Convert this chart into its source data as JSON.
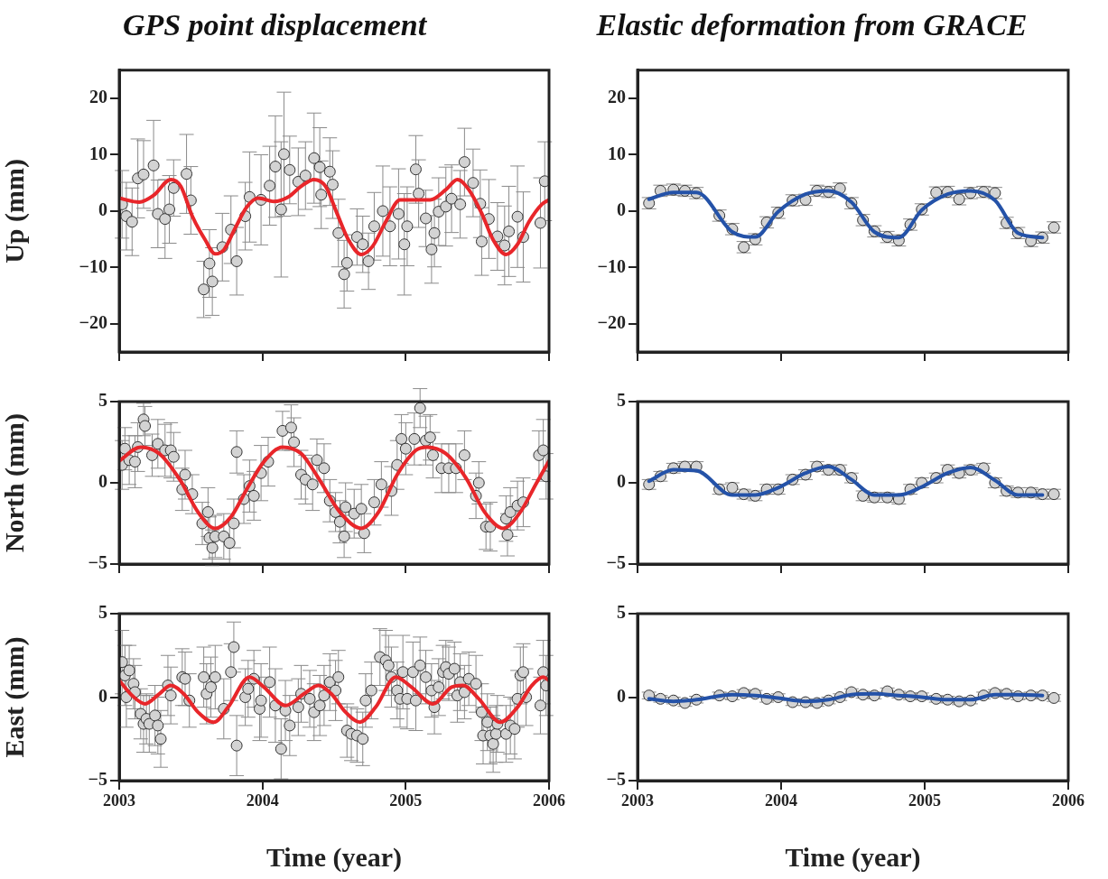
{
  "chart_data": [
    {
      "type": "scatter",
      "title": "GPS point displacement",
      "ylabel": "Up (mm)",
      "xlim": [
        2003,
        2006
      ],
      "xticks": [
        2003,
        2004,
        2005,
        2006
      ],
      "ylim": [
        -25,
        25
      ],
      "yticks": [
        {
          "value": -20,
          "label": "−20"
        },
        {
          "value": -10,
          "label": "−10"
        },
        0,
        10,
        20
      ],
      "tick_labels": "y",
      "grid": false,
      "legend": false,
      "series": [
        {
          "type": "scatter",
          "marker": "circle",
          "color": "#d3d3d3",
          "x": [
            2003.02,
            2003.05,
            2003.09,
            2003.13,
            2003.17,
            2003.24,
            2003.27,
            2003.32,
            2003.35,
            2003.38,
            2003.47,
            2003.5,
            2003.59,
            2003.63,
            2003.65,
            2003.72,
            2003.78,
            2003.82,
            2003.88,
            2003.91,
            2003.99,
            2004.05,
            2004.09,
            2004.13,
            2004.15,
            2004.19,
            2004.25,
            2004.3,
            2004.36,
            2004.4,
            2004.41,
            2004.47,
            2004.49,
            2004.53,
            2004.57,
            2004.59,
            2004.66,
            2004.7,
            2004.74,
            2004.78,
            2004.84,
            2004.89,
            2004.95,
            2004.99,
            2005.01,
            2005.07,
            2005.09,
            2005.14,
            2005.18,
            2005.2,
            2005.23,
            2005.28,
            2005.32,
            2005.38,
            2005.41,
            2005.47,
            2005.52,
            2005.53,
            2005.58,
            2005.64,
            2005.69,
            2005.72,
            2005.78,
            2005.82,
            2005.94,
            2005.97
          ],
          "values": [
            1.2,
            -0.9,
            -1.9,
            5.8,
            6.5,
            8.1,
            -0.5,
            -1.4,
            0.3,
            4.1,
            6.6,
            1.9,
            -13.9,
            -9.3,
            -12.5,
            -6.4,
            -3.3,
            -8.9,
            -0.9,
            2.5,
            2,
            4.5,
            7.9,
            0.3,
            10.1,
            7.3,
            5.2,
            6.3,
            9.4,
            7.8,
            2.9,
            7,
            4.7,
            -3.9,
            -11.2,
            -9.2,
            -4.6,
            -5.9,
            -8.9,
            -2.7,
            0,
            -2.7,
            -0.5,
            -5.9,
            -2.7,
            7.4,
            3.1,
            -1.3,
            -6.8,
            -3.9,
            -0.1,
            0.8,
            2.2,
            1.2,
            8.7,
            5,
            1.3,
            -5.4,
            -1.4,
            -4.5,
            -6.1,
            -3.6,
            -1,
            -4.6,
            -2.1,
            5.3
          ],
          "errors": [
            6,
            6,
            6,
            7,
            6,
            8,
            6,
            7,
            6,
            5,
            7,
            6,
            5,
            6,
            6,
            6,
            6,
            6,
            6,
            8,
            8,
            7,
            9,
            12,
            11,
            6,
            6,
            6,
            8,
            7,
            6,
            6,
            6,
            6,
            6,
            5,
            5,
            5,
            5,
            6,
            8,
            7,
            8,
            9,
            7,
            6,
            6,
            5,
            6,
            6,
            6,
            7,
            6,
            6,
            6,
            6,
            6,
            6,
            7,
            6,
            7,
            8,
            9,
            8,
            8,
            7
          ]
        },
        {
          "type": "line",
          "color": "#e8262a",
          "x": [
            2003,
            2003.14,
            2003.24,
            2003.36,
            2003.43,
            2003.51,
            2003.6,
            2003.67,
            2003.73,
            2003.81,
            2003.89,
            2003.97,
            2004.08,
            2004.18,
            2004.27,
            2004.36,
            2004.44,
            2004.52,
            2004.6,
            2004.69,
            2004.77,
            2004.86,
            2004.96,
            2005.07,
            2005.17,
            2005.28,
            2005.36,
            2005.44,
            2005.53,
            2005.61,
            2005.7,
            2005.78,
            2005.86,
            2005.95,
            2006
          ],
          "values": [
            2.3,
            1.6,
            2.8,
            5.6,
            4.4,
            -0.9,
            -5.1,
            -7.6,
            -6.9,
            -3,
            0.7,
            2.3,
            1.7,
            2.5,
            4.4,
            5.6,
            4.4,
            -0.4,
            -5.1,
            -7.7,
            -6.2,
            -1.9,
            2,
            2,
            2,
            3.8,
            5.6,
            3.8,
            -0.4,
            -5.1,
            -7.7,
            -5.9,
            -1.9,
            1.2,
            2
          ]
        }
      ]
    },
    {
      "type": "scatter",
      "title": "Elastic deformation from GRACE",
      "xlim": [
        2003,
        2006
      ],
      "xticks": [
        2003,
        2004,
        2005,
        2006
      ],
      "ylim": [
        -25,
        25
      ],
      "yticks": [
        {
          "value": -20,
          "label": "−20"
        },
        {
          "value": -10,
          "label": "−10"
        },
        0,
        10,
        20
      ],
      "tick_labels": "y",
      "grid": false,
      "legend": false,
      "series": [
        {
          "type": "scatter",
          "marker": "circle",
          "color": "#d3d3d3",
          "x": [
            2003.08,
            2003.16,
            2003.25,
            2003.33,
            2003.41,
            2003.57,
            2003.66,
            2003.74,
            2003.82,
            2003.9,
            2003.98,
            2004.08,
            2004.17,
            2004.25,
            2004.33,
            2004.41,
            2004.49,
            2004.57,
            2004.65,
            2004.74,
            2004.82,
            2004.9,
            2004.98,
            2005.08,
            2005.16,
            2005.24,
            2005.32,
            2005.41,
            2005.49,
            2005.57,
            2005.65,
            2005.74,
            2005.82,
            2005.9
          ],
          "values": [
            1.4,
            3.6,
            3.8,
            3.6,
            3.2,
            -0.8,
            -3.2,
            -6.4,
            -5,
            -2,
            -0.3,
            1.9,
            2,
            3.6,
            3.4,
            4,
            1.4,
            -1.6,
            -3.6,
            -4.6,
            -5.2,
            -2.4,
            0.3,
            3.3,
            3.4,
            2.1,
            3.2,
            3.4,
            3.2,
            -2.1,
            -3.9,
            -5.3,
            -4.7,
            -2.9
          ],
          "errors": [
            1,
            1,
            1,
            1,
            1,
            1,
            1,
            1,
            1,
            1,
            1,
            1,
            1,
            1,
            1,
            1,
            1,
            1,
            1,
            1,
            1,
            1,
            1,
            1,
            1,
            1,
            1,
            1,
            1,
            1,
            1,
            1,
            1,
            1
          ]
        },
        {
          "type": "line",
          "color": "#2452a8",
          "x": [
            2003.08,
            2003.25,
            2003.41,
            2003.66,
            2003.82,
            2003.98,
            2004.17,
            2004.33,
            2004.49,
            2004.65,
            2004.82,
            2004.98,
            2005.16,
            2005.32,
            2005.49,
            2005.65,
            2005.82
          ],
          "values": [
            2.1,
            3.3,
            3.3,
            -3.7,
            -4.6,
            -0.1,
            3,
            3.6,
            1.6,
            -3.7,
            -4.7,
            0.2,
            3,
            3.6,
            1.9,
            -3.9,
            -4.7
          ]
        }
      ]
    },
    {
      "type": "scatter",
      "ylabel": "North (mm)",
      "xlim": [
        2003,
        2006
      ],
      "xticks": [
        2003,
        2004,
        2005,
        2006
      ],
      "ylim": [
        -5,
        5
      ],
      "yticks": [
        {
          "value": -5,
          "label": "−5"
        },
        0,
        5
      ],
      "tick_labels": "y",
      "grid": false,
      "legend": false,
      "series": [
        {
          "type": "scatter",
          "marker": "circle",
          "color": "#d3d3d3",
          "x": [
            2003.02,
            2003.04,
            2003.07,
            2003.11,
            2003.13,
            2003.17,
            2003.18,
            2003.23,
            2003.27,
            2003.32,
            2003.36,
            2003.38,
            2003.44,
            2003.46,
            2003.51,
            2003.58,
            2003.62,
            2003.63,
            2003.65,
            2003.67,
            2003.73,
            2003.77,
            2003.8,
            2003.82,
            2003.87,
            2003.91,
            2003.94,
            2003.99,
            2004.04,
            2004.14,
            2004.2,
            2004.22,
            2004.27,
            2004.3,
            2004.35,
            2004.38,
            2004.43,
            2004.47,
            2004.51,
            2004.54,
            2004.57,
            2004.58,
            2004.64,
            2004.69,
            2004.71,
            2004.78,
            2004.83,
            2004.9,
            2004.94,
            2004.97,
            2005,
            2005.06,
            2005.1,
            2005.14,
            2005.17,
            2005.19,
            2005.25,
            2005.3,
            2005.35,
            2005.41,
            2005.49,
            2005.51,
            2005.56,
            2005.59,
            2005.7,
            2005.71,
            2005.73,
            2005.78,
            2005.82,
            2005.93,
            2005.96,
            2005.98
          ],
          "values": [
            1.1,
            2.1,
            1.4,
            1.3,
            2.2,
            3.9,
            3.5,
            1.7,
            2.4,
            2,
            2,
            1.6,
            -0.4,
            0.5,
            -0.7,
            -2.5,
            -1.8,
            -3.4,
            -4,
            -3.3,
            -3.3,
            -3.7,
            -2.5,
            1.9,
            -1,
            -0.2,
            -0.8,
            0.6,
            1.3,
            3.2,
            3.4,
            2.5,
            0.5,
            0.2,
            -0.1,
            1.4,
            0.9,
            -1.1,
            -1.8,
            -2.4,
            -3.3,
            -1.5,
            -1.9,
            -1.6,
            -3.1,
            -1.2,
            -0.1,
            -0.5,
            1.1,
            2.7,
            2.1,
            2.7,
            4.6,
            2.6,
            2.8,
            1.7,
            0.9,
            0.9,
            0.9,
            1.7,
            -0.8,
            0,
            -2.7,
            -2.7,
            -2.2,
            -3.2,
            -1.8,
            -1.4,
            -1.2,
            1.7,
            2,
            0.4
          ],
          "errors": [
            1.5,
            1.3,
            1.5,
            1.6,
            1.5,
            1,
            1.2,
            1.3,
            1.5,
            1.6,
            1.7,
            1.5,
            1.3,
            1.5,
            1.2,
            1.3,
            1.5,
            1.3,
            1.1,
            1.3,
            1.4,
            1.3,
            1.5,
            1.3,
            1.5,
            1.6,
            1.5,
            1.7,
            1.5,
            1.2,
            1.4,
            1.5,
            1.5,
            1.5,
            1.6,
            1.3,
            1.5,
            1.3,
            1.2,
            1.3,
            1.3,
            1.5,
            1.5,
            1.5,
            1.2,
            1.4,
            1.4,
            1.5,
            1.5,
            1.5,
            1.6,
            1.6,
            1.2,
            1.5,
            1.4,
            1.4,
            1.5,
            1.5,
            1.5,
            1.5,
            1.4,
            1.3,
            1.4,
            1.5,
            1.4,
            1.3,
            1.5,
            1.5,
            1.5,
            1.5,
            1.9,
            1.4
          ]
        },
        {
          "type": "line",
          "color": "#e8262a",
          "x": [
            2003,
            2003.15,
            2003.28,
            2003.43,
            2003.55,
            2003.67,
            2003.78,
            2003.89,
            2004.01,
            2004.14,
            2004.27,
            2004.39,
            2004.54,
            2004.69,
            2004.81,
            2004.94,
            2005.07,
            2005.15,
            2005.28,
            2005.42,
            2005.55,
            2005.68,
            2005.8,
            2005.91,
            2006
          ],
          "values": [
            1.35,
            2.2,
            1.8,
            0.1,
            -1.8,
            -2.8,
            -2.1,
            -0.4,
            1.3,
            2.2,
            1.8,
            0.3,
            -1.8,
            -2.8,
            -1.8,
            0.5,
            2,
            2.2,
            1.8,
            0.3,
            -1.8,
            -2.8,
            -1.8,
            -0.05,
            1.35
          ]
        }
      ]
    },
    {
      "type": "scatter",
      "xlim": [
        2003,
        2006
      ],
      "xticks": [
        2003,
        2004,
        2005,
        2006
      ],
      "ylim": [
        -5,
        5
      ],
      "yticks": [
        {
          "value": -5,
          "label": "−5"
        },
        0,
        5
      ],
      "tick_labels": "y",
      "grid": false,
      "legend": false,
      "series": [
        {
          "type": "scatter",
          "marker": "circle",
          "color": "#d3d3d3",
          "x": [
            2003.08,
            2003.16,
            2003.25,
            2003.33,
            2003.41,
            2003.57,
            2003.66,
            2003.74,
            2003.82,
            2003.9,
            2003.98,
            2004.08,
            2004.17,
            2004.25,
            2004.33,
            2004.41,
            2004.49,
            2004.57,
            2004.65,
            2004.74,
            2004.82,
            2004.9,
            2004.98,
            2005.08,
            2005.16,
            2005.24,
            2005.32,
            2005.41,
            2005.49,
            2005.57,
            2005.65,
            2005.74,
            2005.82,
            2005.9
          ],
          "values": [
            -0.1,
            0.4,
            0.9,
            1,
            1,
            -0.4,
            -0.3,
            -0.7,
            -0.8,
            -0.4,
            -0.4,
            0.2,
            0.5,
            1,
            0.8,
            0.8,
            0.3,
            -0.8,
            -0.9,
            -0.9,
            -1,
            -0.4,
            0,
            0.3,
            0.8,
            0.6,
            0.8,
            0.9,
            0,
            -0.5,
            -0.6,
            -0.6,
            -0.7,
            -0.7
          ],
          "errors": [
            0.3,
            0.3,
            0.3,
            0.3,
            0.3,
            0.3,
            0.3,
            0.3,
            0.3,
            0.3,
            0.3,
            0.3,
            0.3,
            0.3,
            0.3,
            0.3,
            0.3,
            0.3,
            0.3,
            0.3,
            0.3,
            0.3,
            0.3,
            0.3,
            0.3,
            0.3,
            0.3,
            0.3,
            0.3,
            0.3,
            0.3,
            0.3,
            0.3,
            0.3
          ]
        },
        {
          "type": "line",
          "color": "#2452a8",
          "x": [
            2003.08,
            2003.25,
            2003.41,
            2003.66,
            2003.82,
            2003.98,
            2004.17,
            2004.33,
            2004.49,
            2004.65,
            2004.82,
            2004.98,
            2005.16,
            2005.32,
            2005.49,
            2005.65,
            2005.82
          ],
          "values": [
            0.1,
            0.8,
            0.75,
            -0.75,
            -0.75,
            -0.3,
            0.6,
            1,
            0.2,
            -0.75,
            -0.75,
            -0.25,
            0.6,
            0.95,
            0.15,
            -0.75,
            -0.75
          ]
        }
      ]
    },
    {
      "type": "scatter",
      "ylabel": "East (mm)",
      "xlabel": "Time (year)",
      "xlim": [
        2003,
        2006
      ],
      "xticks": [
        2003,
        2004,
        2005,
        2006
      ],
      "ylim": [
        -5,
        5
      ],
      "yticks": [
        {
          "value": -5,
          "label": "−5"
        },
        0,
        5
      ],
      "grid": false,
      "legend": false,
      "series": [
        {
          "type": "scatter",
          "marker": "circle",
          "color": "#d3d3d3",
          "x": [
            2003.02,
            2003.04,
            2003.05,
            2003.07,
            2003.1,
            2003.11,
            2003.15,
            2003.17,
            2003.19,
            2003.21,
            2003.25,
            2003.27,
            2003.29,
            2003.34,
            2003.36,
            2003.44,
            2003.46,
            2003.49,
            2003.59,
            2003.61,
            2003.64,
            2003.67,
            2003.73,
            2003.78,
            2003.8,
            2003.82,
            2003.88,
            2003.9,
            2003.94,
            2003.98,
            2003.99,
            2004.05,
            2004.09,
            2004.13,
            2004.16,
            2004.19,
            2004.25,
            2004.27,
            2004.33,
            2004.36,
            2004.4,
            2004.43,
            2004.47,
            2004.51,
            2004.53,
            2004.59,
            2004.62,
            2004.66,
            2004.7,
            2004.72,
            2004.76,
            2004.82,
            2004.86,
            2004.88,
            2004.9,
            2004.94,
            2004.96,
            2004.98,
            2005.01,
            2005.05,
            2005.07,
            2005.1,
            2005.14,
            2005.18,
            2005.2,
            2005.23,
            2005.26,
            2005.28,
            2005.3,
            2005.34,
            2005.36,
            2005.38,
            2005.41,
            2005.44,
            2005.49,
            2005.53,
            2005.54,
            2005.57,
            2005.59,
            2005.61,
            2005.63,
            2005.64,
            2005.7,
            2005.73,
            2005.76,
            2005.78,
            2005.8,
            2005.82,
            2005.84,
            2005.94,
            2005.96,
            2005.98
          ],
          "values": [
            2.1,
            1.3,
            0,
            1.6,
            0.8,
            0.3,
            -1,
            -1.6,
            -1.3,
            -1.6,
            -1.1,
            -1.7,
            -2.5,
            0.7,
            0.1,
            1.2,
            1.1,
            -0.2,
            1.2,
            0.2,
            0.6,
            1.2,
            -0.7,
            1.5,
            3,
            -2.9,
            0,
            0.5,
            1.1,
            -0.7,
            -0.2,
            0.9,
            -0.5,
            -3.1,
            -0.8,
            -1.7,
            -0.6,
            0.2,
            -0.1,
            -0.9,
            -0.5,
            0.1,
            0.9,
            0.4,
            1.2,
            -2,
            -2.2,
            -2.3,
            -2.5,
            -0.2,
            0.4,
            2.4,
            2.2,
            1.9,
            1.2,
            0.4,
            -0.1,
            1.5,
            -0.1,
            1.5,
            -0.2,
            1.9,
            1.2,
            0.4,
            -0.6,
            0.6,
            1.5,
            1.8,
            1.4,
            1.7,
            0.1,
            0.9,
            0.3,
            1.1,
            0.8,
            -0.9,
            -2.3,
            -1.5,
            -2.3,
            -2.8,
            -2.2,
            -1.6,
            -2.2,
            -1.7,
            -1.9,
            -0.1,
            1.3,
            1.5,
            0,
            -0.5,
            1.5,
            0.7
          ],
          "errors": [
            1.9,
            1.8,
            1.8,
            1.5,
            1.5,
            1.6,
            1.5,
            1.7,
            1.5,
            1.7,
            1.8,
            1.7,
            1.7,
            1.8,
            1.7,
            1.7,
            1.6,
            1.6,
            1.8,
            1.8,
            1.8,
            1.9,
            1.8,
            1.7,
            1.5,
            1.8,
            1.7,
            1.7,
            1.7,
            1.9,
            2.2,
            2.1,
            2.2,
            1.8,
            1.8,
            1.8,
            1.7,
            1.7,
            1.7,
            1.7,
            1.8,
            1.8,
            1.7,
            1.8,
            1.6,
            1.6,
            1.6,
            1.6,
            1.6,
            1.6,
            1.7,
            1.7,
            1.8,
            1.8,
            1.8,
            1.7,
            1.7,
            2.2,
            1.8,
            1.8,
            1.8,
            1.7,
            1.6,
            1.6,
            1.6,
            1.7,
            1.6,
            1.6,
            1.6,
            1.6,
            1.6,
            1.7,
            1.6,
            1.6,
            1.7,
            1.7,
            1.7,
            1.7,
            1.7,
            1.7,
            1.7,
            1.7,
            1.7,
            1.7,
            1.8,
            1.7,
            1.7,
            1.7,
            1.7,
            1.7,
            1.9,
            1.8
          ]
        },
        {
          "type": "line",
          "color": "#e8262a",
          "x": [
            2003,
            2003.09,
            2003.18,
            2003.28,
            2003.36,
            2003.45,
            2003.55,
            2003.66,
            2003.76,
            2003.91,
            2004.01,
            2004.16,
            2004.29,
            2004.39,
            2004.48,
            2004.58,
            2004.68,
            2004.79,
            2004.93,
            2005.04,
            2005.19,
            2005.32,
            2005.4,
            2005.51,
            2005.66,
            2005.78,
            2005.88,
            2005.96,
            2006
          ],
          "values": [
            1,
            0.1,
            -0.4,
            0.2,
            0.7,
            0.2,
            -0.9,
            -1.5,
            -0.6,
            1.2,
            0.6,
            -0.5,
            0.2,
            0.7,
            0.2,
            -0.9,
            -1.5,
            -0.6,
            1.2,
            0.6,
            -0.4,
            0.6,
            0.7,
            -0.1,
            -1.5,
            -0.6,
            0.7,
            1.2,
            1
          ]
        }
      ]
    },
    {
      "type": "scatter",
      "xlabel": "Time (year)",
      "xlim": [
        2003,
        2006
      ],
      "xticks": [
        2003,
        2004,
        2005,
        2006
      ],
      "ylim": [
        -5,
        5
      ],
      "yticks": [
        {
          "value": -5,
          "label": "−5"
        },
        0,
        5
      ],
      "grid": false,
      "legend": false,
      "series": [
        {
          "type": "scatter",
          "marker": "circle",
          "color": "#d3d3d3",
          "x": [
            2003.08,
            2003.16,
            2003.25,
            2003.33,
            2003.41,
            2003.57,
            2003.66,
            2003.74,
            2003.82,
            2003.9,
            2003.98,
            2004.08,
            2004.17,
            2004.25,
            2004.33,
            2004.41,
            2004.49,
            2004.57,
            2004.65,
            2004.74,
            2004.82,
            2004.9,
            2004.98,
            2005.08,
            2005.16,
            2005.24,
            2005.32,
            2005.41,
            2005.49,
            2005.57,
            2005.65,
            2005.74,
            2005.82,
            2005.9
          ],
          "values": [
            0.1,
            -0.1,
            -0.2,
            -0.35,
            -0.15,
            0.1,
            0.05,
            0.25,
            0.2,
            -0.1,
            0,
            -0.3,
            -0.3,
            -0.35,
            -0.2,
            0,
            0.3,
            0.15,
            0.1,
            0.35,
            0.15,
            0.05,
            0.05,
            -0.1,
            -0.15,
            -0.25,
            -0.2,
            0.1,
            0.25,
            0.2,
            0.05,
            0.1,
            0.1,
            -0.05
          ],
          "errors": [
            0.2,
            0.2,
            0.2,
            0.2,
            0.2,
            0.2,
            0.2,
            0.2,
            0.2,
            0.2,
            0.2,
            0.2,
            0.2,
            0.2,
            0.2,
            0.2,
            0.2,
            0.2,
            0.2,
            0.2,
            0.2,
            0.2,
            0.2,
            0.2,
            0.2,
            0.2,
            0.2,
            0.2,
            0.2,
            0.2,
            0.2,
            0.2,
            0.2,
            0.2
          ]
        },
        {
          "type": "line",
          "color": "#2452a8",
          "x": [
            2003.08,
            2003.25,
            2003.41,
            2003.66,
            2003.82,
            2003.98,
            2004.17,
            2004.33,
            2004.49,
            2004.65,
            2004.82,
            2004.98,
            2005.16,
            2005.32,
            2005.49,
            2005.65,
            2005.82
          ],
          "values": [
            -0.1,
            -0.25,
            -0.15,
            0.15,
            0.1,
            -0.05,
            -0.25,
            -0.15,
            0.15,
            0.2,
            0.1,
            0,
            -0.15,
            -0.15,
            0.15,
            0.15,
            0.1
          ]
        }
      ]
    }
  ]
}
